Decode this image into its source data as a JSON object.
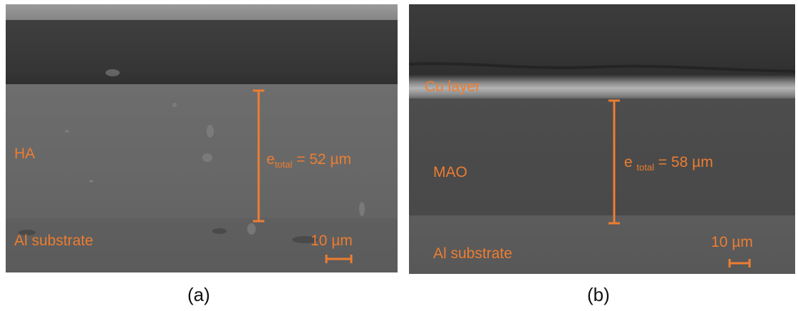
{
  "panel_a": {
    "caption": "(a)",
    "layer_label": "HA",
    "substrate_label": "Al substrate",
    "thickness_symbol": "e",
    "thickness_subscript": "total",
    "thickness_value": "= 52 µm",
    "scale_label": "10 µm"
  },
  "panel_b": {
    "caption": "(b)",
    "top_layer_label": "Cu layer",
    "layer_label": "MAO",
    "substrate_label": "Al substrate",
    "thickness_symbol": "e ",
    "thickness_subscript": "total",
    "thickness_value": " = 58 µm",
    "scale_label": "10 µm"
  },
  "colors": {
    "annotation": "#ed7d31",
    "caption": "#111111"
  }
}
